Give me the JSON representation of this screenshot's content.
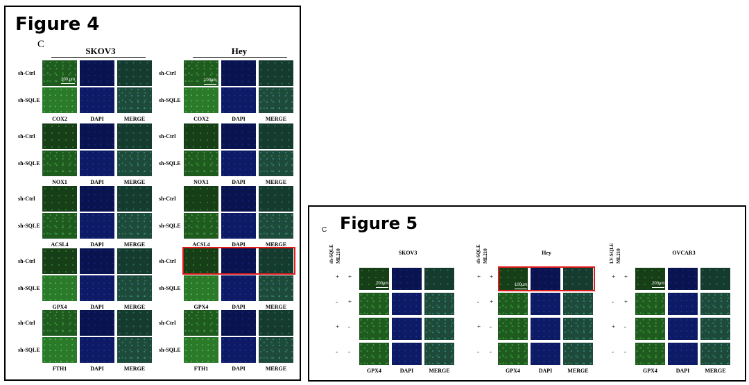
{
  "figure4": {
    "title": "Figure 4",
    "panel_letter": "C",
    "cell_lines": [
      "SKOV3",
      "Hey"
    ],
    "row_labels": [
      "sh-Ctrl",
      "sh-SQLE"
    ],
    "markers": [
      "COX2",
      "NOX1",
      "ACSL4",
      "GPX4",
      "FTH1"
    ],
    "channel_labels": [
      "DAPI",
      "MERGE"
    ],
    "scale_skov3": "200 μm",
    "scale_hey": "100μm"
  },
  "figure5": {
    "title": "Figure 5",
    "panel_letter": "C",
    "groups": [
      {
        "name": "SKOV3",
        "treatments": [
          "sh-SQLE",
          "ML210"
        ],
        "scale": "200μm"
      },
      {
        "name": "Hey",
        "treatments": [
          "sh-SQLE",
          "ML210"
        ],
        "scale": "100μm"
      },
      {
        "name": "OVCAR3",
        "treatments": [
          "LV-SQLE",
          "ML210"
        ],
        "scale": "200μm"
      }
    ],
    "signs": [
      [
        "+",
        "+"
      ],
      [
        "-",
        "+"
      ],
      [
        "+",
        "-"
      ],
      [
        "-",
        "-"
      ]
    ],
    "column_labels": [
      "GPX4",
      "DAPI",
      "MERGE"
    ]
  }
}
